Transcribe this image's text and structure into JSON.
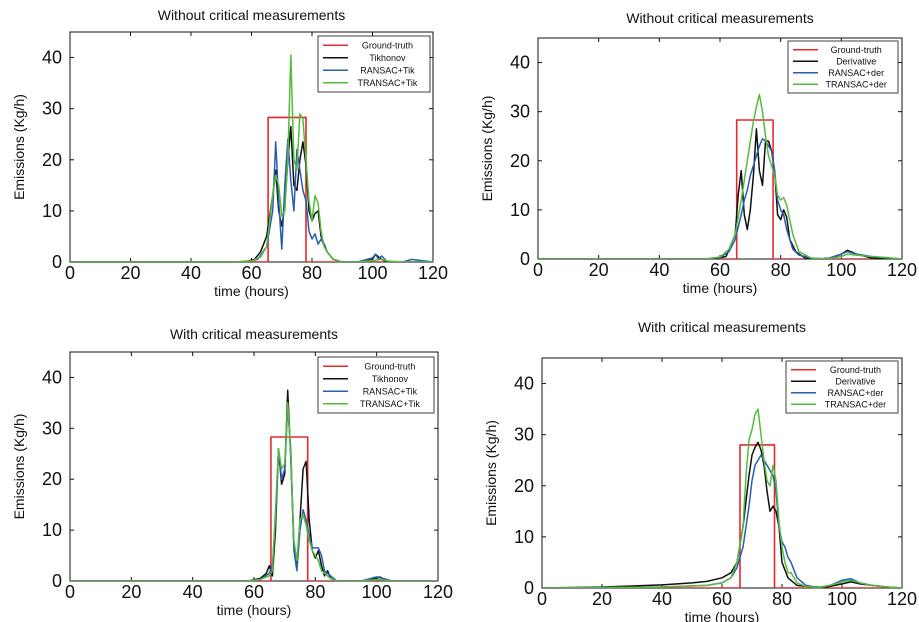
{
  "chart_data": [
    {
      "type": "line",
      "title": "Without critical measurements",
      "xlabel": "time (hours)",
      "ylabel": "Emissions (Kg/h)",
      "xlim": [
        0,
        120
      ],
      "ylim": [
        0,
        45
      ],
      "xticks": [
        "0",
        "20",
        "40",
        "60",
        "80",
        "100",
        "120"
      ],
      "yticks": [
        "0",
        "10",
        "20",
        "30",
        "40"
      ],
      "legend_position": "top-right",
      "grid": false,
      "series": [
        {
          "name": "Ground-truth",
          "color": "#e8282b",
          "x": [
            0,
            65.5,
            65.5,
            78,
            78,
            120
          ],
          "y": [
            0,
            0,
            28.3,
            28.3,
            0,
            0
          ]
        },
        {
          "name": "Tikhonov",
          "color": "#111111",
          "x": [
            0,
            55,
            59,
            61,
            63,
            65,
            67,
            68,
            69,
            70,
            71,
            72,
            73,
            74,
            75,
            76,
            77,
            78,
            79,
            80,
            81,
            82,
            83,
            85,
            87,
            90,
            95,
            100,
            101,
            103,
            105,
            110,
            113,
            120
          ],
          "y": [
            0,
            0,
            0.2,
            0.5,
            2,
            5,
            13,
            18,
            10,
            7,
            11,
            20,
            26.5,
            15,
            14,
            20,
            23.5,
            19,
            10,
            8,
            9.5,
            10,
            5,
            2,
            0.5,
            0,
            0,
            0.5,
            1.5,
            0.5,
            0,
            0,
            0,
            0
          ]
        },
        {
          "name": "RANSAC+Tik",
          "color": "#2a5db0",
          "x": [
            0,
            55,
            59,
            62,
            65,
            67,
            68,
            69,
            70,
            71,
            72,
            73,
            74,
            75,
            76,
            77,
            78,
            79,
            80,
            81,
            82,
            83,
            85,
            87,
            90,
            95,
            100,
            101,
            102,
            103,
            105,
            110,
            113,
            120
          ],
          "y": [
            0,
            0,
            0.1,
            0.5,
            3,
            10,
            23.5,
            12,
            2.5,
            15,
            24,
            16,
            10,
            22,
            18,
            14,
            12,
            6,
            4.5,
            5.5,
            3.5,
            4.5,
            2,
            0.5,
            0,
            0,
            0.8,
            1.5,
            0.5,
            1.2,
            0,
            0,
            0.5,
            0
          ]
        },
        {
          "name": "TRANSAC+Tik",
          "color": "#55bb3e",
          "x": [
            0,
            55,
            60,
            63,
            65,
            67,
            68,
            69,
            70,
            71,
            72,
            73,
            74,
            75,
            76,
            77,
            78,
            79,
            80,
            81,
            82,
            83,
            84,
            85,
            87,
            90,
            95,
            100,
            103,
            105,
            110,
            120
          ],
          "y": [
            0,
            0,
            0.2,
            1,
            3,
            13,
            17,
            15,
            9,
            10,
            20,
            40.5,
            20,
            18,
            29,
            28,
            20,
            12,
            8,
            13,
            11.5,
            6,
            3,
            2,
            0.5,
            0,
            0,
            0.3,
            0.5,
            0.2,
            0,
            0
          ]
        }
      ]
    },
    {
      "type": "line",
      "title": "Without critical measurements",
      "xlabel": "time (hours)",
      "ylabel": "Emissions (Kg/h)",
      "xlim": [
        0,
        120
      ],
      "ylim": [
        0,
        45
      ],
      "xticks": [
        "0",
        "20",
        "40",
        "60",
        "80",
        "100",
        "120"
      ],
      "yticks": [
        "0",
        "10",
        "20",
        "30",
        "40"
      ],
      "legend_position": "top-right",
      "grid": false,
      "series": [
        {
          "name": "Ground-truth",
          "color": "#e8282b",
          "x": [
            0,
            65.5,
            65.5,
            77.5,
            77.5,
            120
          ],
          "y": [
            0,
            0,
            28.3,
            28.3,
            0,
            0
          ]
        },
        {
          "name": "Derivative",
          "color": "#111111",
          "x": [
            0,
            58,
            62,
            65,
            66,
            67,
            68,
            69,
            70,
            71,
            72,
            73,
            74,
            75,
            76,
            77,
            78,
            79,
            80,
            81,
            82,
            83,
            85,
            88,
            92,
            97,
            100,
            102,
            105,
            110,
            120
          ],
          "y": [
            0,
            0,
            0.5,
            5,
            13,
            18,
            9,
            6,
            10,
            17,
            26.5,
            18,
            15,
            24,
            24,
            22,
            18,
            9,
            8,
            10,
            8.5,
            4,
            1.5,
            0.2,
            0,
            0.2,
            1,
            1.8,
            1,
            0.2,
            0
          ]
        },
        {
          "name": "RANSAC+der",
          "color": "#2a5db0",
          "x": [
            0,
            55,
            60,
            63,
            65,
            67,
            68,
            69,
            70,
            71,
            72,
            73,
            74,
            75,
            76,
            77,
            78,
            79,
            80,
            81,
            82,
            84,
            86,
            90,
            95,
            100,
            102,
            105,
            110,
            115,
            120
          ],
          "y": [
            0,
            0,
            0.3,
            1.5,
            4,
            9,
            12,
            14,
            17,
            19,
            21,
            23,
            24.5,
            24,
            23,
            22,
            18,
            12,
            10,
            9,
            6,
            2,
            0.8,
            0.2,
            0,
            1,
            1.5,
            1,
            0.5,
            0.2,
            0
          ]
        },
        {
          "name": "TRANSAC+der",
          "color": "#55bb3e",
          "x": [
            0,
            55,
            60,
            63,
            65,
            67,
            69,
            71,
            72,
            73,
            74,
            75,
            76,
            77,
            78,
            79,
            80,
            81,
            82,
            84,
            86,
            90,
            95,
            100,
            102,
            105,
            110,
            115,
            120
          ],
          "y": [
            0,
            0,
            0.4,
            2,
            5,
            12,
            20,
            28,
            31,
            33.5,
            30,
            25,
            21,
            19,
            17,
            13,
            12,
            12.5,
            11,
            5,
            1.5,
            0.2,
            0,
            0.5,
            1,
            0.8,
            0.5,
            0.3,
            0
          ]
        }
      ]
    },
    {
      "type": "line",
      "title": "With critical measurements",
      "xlabel": "time (hours)",
      "ylabel": "Emissions  (Kg/h)",
      "xlim": [
        0,
        120
      ],
      "ylim": [
        0,
        45
      ],
      "xticks": [
        "0",
        "20",
        "40",
        "60",
        "80",
        "100",
        "120"
      ],
      "yticks": [
        "0",
        "10",
        "20",
        "30",
        "40"
      ],
      "legend_position": "top-right",
      "grid": false,
      "series": [
        {
          "name": "Ground-truth",
          "color": "#e8282b",
          "x": [
            0,
            65.5,
            65.5,
            77.5,
            77.5,
            120
          ],
          "y": [
            0,
            0,
            28.3,
            28.3,
            0,
            0
          ]
        },
        {
          "name": "Tikhonov",
          "color": "#111111",
          "x": [
            0,
            58,
            62,
            64,
            65,
            66,
            67,
            68,
            69,
            70,
            71,
            72,
            73,
            74,
            75,
            76,
            77,
            78,
            79,
            80,
            81,
            82,
            83,
            84,
            85,
            87,
            90,
            95,
            100,
            101,
            102,
            105,
            110,
            120
          ],
          "y": [
            0,
            0,
            0.5,
            1.5,
            3,
            1,
            10,
            26,
            19,
            21,
            37.5,
            24,
            7,
            3,
            12,
            22,
            23.5,
            12,
            6,
            4.5,
            6,
            3,
            1,
            2,
            0.5,
            0,
            0,
            0,
            0.5,
            0.8,
            0.5,
            0,
            0,
            0
          ]
        },
        {
          "name": "RANSAC+Tik",
          "color": "#2a5db0",
          "x": [
            0,
            58,
            62,
            65,
            66,
            67,
            68,
            69,
            70,
            71,
            72,
            73,
            74,
            75,
            76,
            77,
            78,
            79,
            80,
            81,
            82,
            83,
            85,
            87,
            90,
            95,
            100,
            102,
            105,
            110,
            120
          ],
          "y": [
            0,
            0,
            0.3,
            1.5,
            3,
            12,
            26,
            20,
            22,
            34,
            26,
            6,
            2,
            10,
            14,
            12,
            9,
            6.5,
            6.5,
            6.5,
            5,
            2,
            1,
            0,
            0,
            0,
            0.8,
            0.5,
            0,
            0,
            0
          ]
        },
        {
          "name": "TRANSAC+Tik",
          "color": "#55bb3e",
          "x": [
            0,
            58,
            62,
            65,
            66,
            67,
            68,
            69,
            70,
            71,
            72,
            73,
            74,
            75,
            76,
            77,
            78,
            79,
            80,
            81,
            82,
            85,
            87,
            90,
            95,
            100,
            102,
            105,
            110,
            120
          ],
          "y": [
            0,
            0,
            0.3,
            1,
            2,
            14,
            26,
            22,
            23,
            35,
            25,
            8,
            4,
            12,
            13,
            11,
            8,
            6,
            5,
            4,
            2,
            0.5,
            0,
            0,
            0,
            0.3,
            0.2,
            0,
            0,
            0
          ]
        }
      ]
    },
    {
      "type": "line",
      "title": "With critical measurements",
      "xlabel": "time (hours)",
      "ylabel": "Emissions (Kg/h)",
      "xlim": [
        0,
        120
      ],
      "ylim": [
        0,
        45
      ],
      "xticks": [
        "0",
        "20",
        "40",
        "60",
        "80",
        "100",
        "120"
      ],
      "yticks": [
        "0",
        "10",
        "20",
        "30",
        "40"
      ],
      "legend_position": "top-right",
      "grid": false,
      "series": [
        {
          "name": "Ground-truth",
          "color": "#e8282b",
          "x": [
            0,
            66,
            66,
            77.5,
            77.5,
            120
          ],
          "y": [
            0,
            0,
            28,
            28,
            0,
            0
          ]
        },
        {
          "name": "Derivative",
          "color": "#111111",
          "x": [
            0,
            10,
            20,
            30,
            40,
            50,
            55,
            60,
            63,
            65,
            67,
            69,
            70,
            71,
            72,
            73,
            74,
            75,
            76,
            77,
            78,
            79,
            80,
            82,
            85,
            90,
            95,
            100,
            103,
            106,
            110,
            115,
            120
          ],
          "y": [
            0,
            0.1,
            0.2,
            0.4,
            0.6,
            1,
            1.3,
            2,
            3,
            5,
            12,
            22,
            26,
            27.5,
            28.5,
            27,
            24,
            19,
            15,
            16,
            15,
            12,
            5,
            2,
            0.5,
            0.2,
            0.2,
            0.8,
            1.2,
            0.8,
            0.5,
            0.2,
            0
          ]
        },
        {
          "name": "RANSAC+der",
          "color": "#2a5db0",
          "x": [
            0,
            20,
            40,
            55,
            60,
            63,
            65,
            67,
            68,
            69,
            70,
            71,
            72,
            73,
            74,
            75,
            76,
            77,
            78,
            79,
            80,
            81,
            82,
            83,
            85,
            88,
            92,
            96,
            100,
            103,
            106,
            110,
            115,
            120
          ],
          "y": [
            0,
            0.1,
            0.2,
            0.5,
            1,
            2,
            4,
            8,
            12,
            16,
            21,
            24,
            25,
            26,
            25,
            24,
            23,
            22,
            19,
            12,
            9,
            8,
            6,
            5,
            2,
            0.5,
            0.1,
            0.5,
            1.5,
            1.8,
            1,
            0.5,
            0.2,
            0
          ]
        },
        {
          "name": "TRANSAC+der",
          "color": "#55bb3e",
          "x": [
            0,
            20,
            40,
            55,
            60,
            63,
            65,
            67,
            68,
            69,
            70,
            71,
            72,
            73,
            74,
            75,
            76,
            77,
            78,
            79,
            80,
            81,
            82,
            83,
            85,
            88,
            92,
            96,
            100,
            103,
            106,
            110,
            115,
            120
          ],
          "y": [
            0,
            0.1,
            0.2,
            0.5,
            1,
            2,
            5,
            12,
            22,
            29,
            31,
            34,
            35,
            30,
            25,
            21,
            20,
            24,
            21,
            13,
            8,
            5,
            3,
            3,
            1,
            0.3,
            0.1,
            0.5,
            1.2,
            1.5,
            1,
            0.5,
            0.2,
            0
          ]
        }
      ]
    }
  ]
}
